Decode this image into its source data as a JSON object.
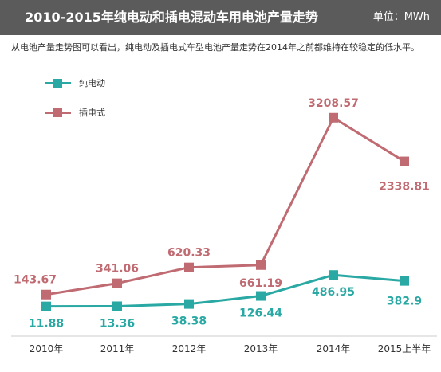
{
  "header": {
    "title": "2010-2015年纯电动和插电混动车用电池产量走势",
    "unit": "单位：MWh"
  },
  "description": "从电池产量走势图可以看出，纯电动及插电式车型电池产量走势在2014年之前都维持在较稳定的低水平。",
  "colors": {
    "header_bg": "#5b5b5b",
    "pure_ev": "#2aa9a4",
    "plugin": "#c06a72",
    "axis": "#cccccc"
  },
  "chart_data": {
    "type": "line",
    "categories": [
      "2010年",
      "2011年",
      "2012年",
      "2013年",
      "2014年",
      "2015上半年"
    ],
    "series": [
      {
        "name": "纯电动",
        "values": [
          11.88,
          13.36,
          38.38,
          126.44,
          486.95,
          382.9
        ],
        "labels": [
          "11.88",
          "13.36",
          "38.38",
          "126.44",
          "486.95",
          "382.9"
        ]
      },
      {
        "name": "插电式",
        "values": [
          143.67,
          341.06,
          620.33,
          661.19,
          3208.57,
          2338.81
        ],
        "labels": [
          "143.67",
          "341.06",
          "620.33",
          "661.19",
          "3208.57",
          "2338.81"
        ]
      }
    ],
    "legend_position": "top-left",
    "grid": false
  }
}
